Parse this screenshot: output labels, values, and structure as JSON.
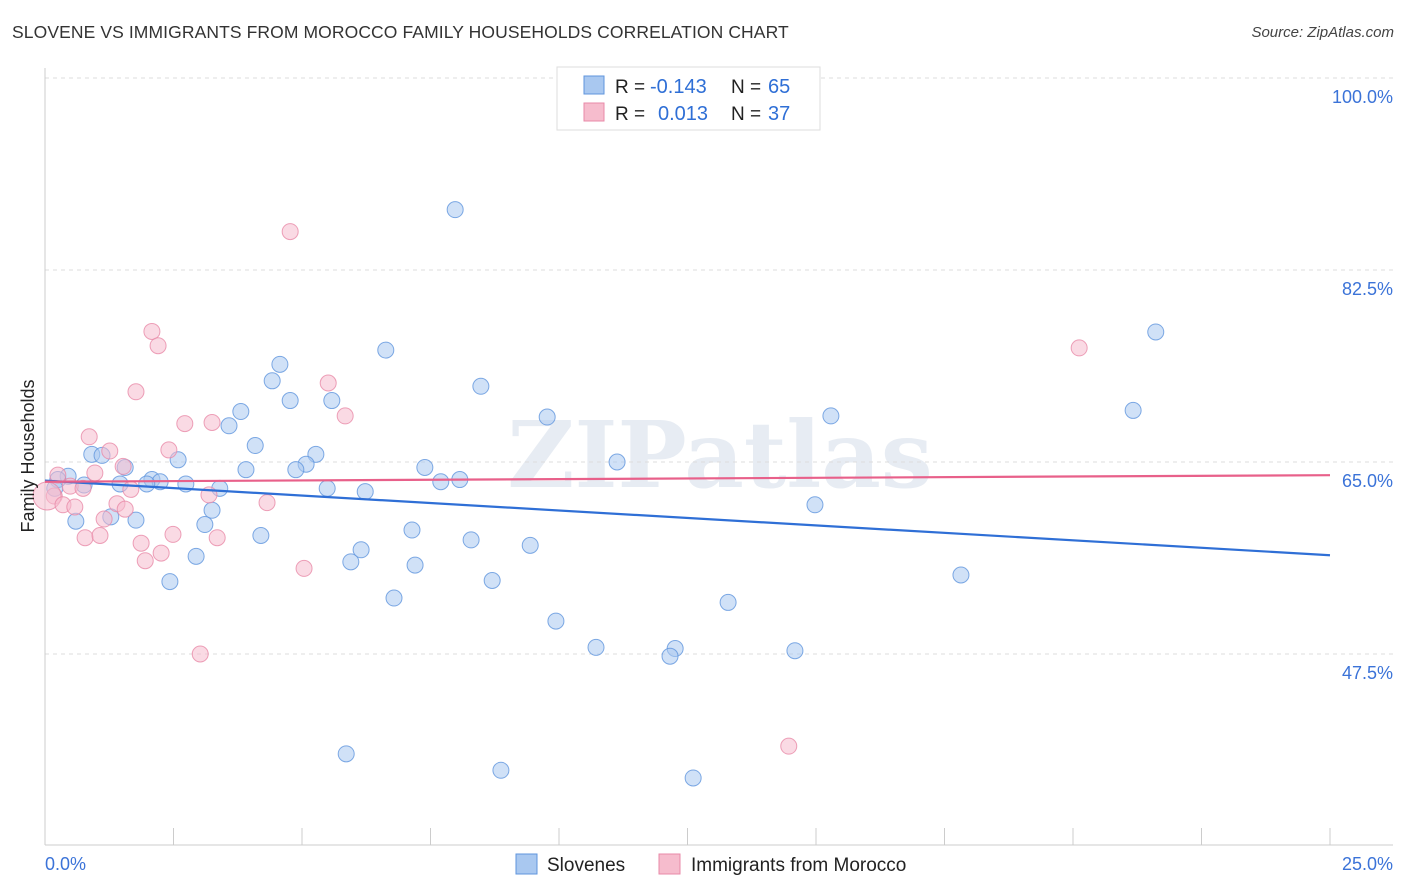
{
  "title": "SLOVENE VS IMMIGRANTS FROM MOROCCO FAMILY HOUSEHOLDS CORRELATION CHART",
  "source": "Source: ZipAtlas.com",
  "watermark": "ZIPatlas",
  "colors": {
    "blue_fill": "#a9c8f0",
    "blue_stroke": "#5f95dd",
    "blue_line": "#2f6fd6",
    "pink_fill": "#f6bccd",
    "pink_stroke": "#e88aa8",
    "pink_line": "#e8608a",
    "axis_label": "#3b73d8"
  },
  "legend": {
    "rows": [
      {
        "r_label": "R =",
        "r_value": "-0.143",
        "n_label": "N =",
        "n_value": "65"
      },
      {
        "r_label": "R =",
        "r_value": "0.013",
        "n_label": "N =",
        "n_value": "37"
      }
    ]
  },
  "chart_data": {
    "type": "scatter",
    "title": "SLOVENE VS IMMIGRANTS FROM MOROCCO FAMILY HOUSEHOLDS CORRELATION CHART",
    "xlabel": "",
    "ylabel": "Family Households",
    "xlim": [
      0,
      25
    ],
    "ylim": [
      30.1,
      100
    ],
    "x_tick_labels": [
      "0.0%",
      "25.0%"
    ],
    "y_ticks": [
      100,
      82.5,
      65,
      47.5
    ],
    "y_tick_labels": [
      "100.0%",
      "82.5%",
      "65.0%",
      "47.5%"
    ],
    "grid": true,
    "legend_position": "top-center",
    "series": [
      {
        "name": "Slovenes",
        "trend": [
          [
            0,
            63.3
          ],
          [
            25,
            56.5
          ]
        ],
        "points": [
          [
            7.98,
            88.0
          ],
          [
            21.61,
            76.85
          ],
          [
            6.63,
            75.2
          ],
          [
            4.57,
            73.9
          ],
          [
            4.42,
            72.4
          ],
          [
            8.48,
            71.9
          ],
          [
            4.77,
            70.6
          ],
          [
            5.58,
            70.6
          ],
          [
            3.81,
            69.6
          ],
          [
            3.58,
            68.3
          ],
          [
            9.77,
            69.1
          ],
          [
            15.29,
            69.2
          ],
          [
            21.17,
            69.7
          ],
          [
            4.09,
            66.5
          ],
          [
            5.27,
            65.7
          ],
          [
            0.91,
            65.7
          ],
          [
            1.11,
            65.6
          ],
          [
            2.59,
            65.2
          ],
          [
            5.08,
            64.8
          ],
          [
            1.56,
            64.5
          ],
          [
            3.91,
            64.3
          ],
          [
            4.88,
            64.3
          ],
          [
            7.39,
            64.5
          ],
          [
            11.13,
            65.0
          ],
          [
            0.45,
            63.7
          ],
          [
            0.25,
            63.4
          ],
          [
            2.08,
            63.4
          ],
          [
            2.24,
            63.2
          ],
          [
            1.46,
            63.0
          ],
          [
            1.98,
            63.0
          ],
          [
            2.74,
            63.0
          ],
          [
            0.76,
            62.9
          ],
          [
            3.4,
            62.6
          ],
          [
            7.7,
            63.2
          ],
          [
            8.07,
            63.4
          ],
          [
            5.49,
            62.6
          ],
          [
            6.23,
            62.3
          ],
          [
            0.19,
            62.6
          ],
          [
            14.98,
            61.1
          ],
          [
            3.25,
            60.6
          ],
          [
            1.28,
            60.0
          ],
          [
            1.77,
            59.7
          ],
          [
            0.6,
            59.6
          ],
          [
            3.11,
            59.3
          ],
          [
            7.14,
            58.8
          ],
          [
            4.2,
            58.3
          ],
          [
            8.29,
            57.9
          ],
          [
            9.44,
            57.4
          ],
          [
            6.15,
            57.0
          ],
          [
            5.95,
            55.9
          ],
          [
            7.2,
            55.6
          ],
          [
            2.94,
            56.4
          ],
          [
            17.82,
            54.7
          ],
          [
            2.43,
            54.1
          ],
          [
            8.7,
            54.2
          ],
          [
            6.79,
            52.6
          ],
          [
            13.29,
            52.2
          ],
          [
            9.94,
            50.5
          ],
          [
            10.72,
            48.1
          ],
          [
            12.26,
            48.0
          ],
          [
            12.16,
            47.3
          ],
          [
            14.59,
            47.8
          ],
          [
            5.86,
            38.4
          ],
          [
            8.87,
            36.9
          ],
          [
            12.61,
            36.2
          ]
        ]
      },
      {
        "name": "Immigrants from Morocco",
        "trend": [
          [
            0,
            63.2
          ],
          [
            25,
            63.8
          ]
        ],
        "points": [
          [
            4.77,
            86.0
          ],
          [
            2.08,
            76.9
          ],
          [
            2.2,
            75.6
          ],
          [
            20.12,
            75.4
          ],
          [
            1.77,
            71.4
          ],
          [
            5.51,
            72.2
          ],
          [
            5.84,
            69.2
          ],
          [
            2.72,
            68.5
          ],
          [
            3.25,
            68.6
          ],
          [
            0.86,
            67.3
          ],
          [
            2.41,
            66.1
          ],
          [
            1.26,
            66.0
          ],
          [
            1.52,
            64.6
          ],
          [
            0.97,
            64.0
          ],
          [
            0.25,
            63.8
          ],
          [
            0.49,
            62.8
          ],
          [
            0.74,
            62.6
          ],
          [
            1.67,
            62.5
          ],
          [
            3.19,
            62.0
          ],
          [
            0.18,
            61.9
          ],
          [
            0.04,
            61.9
          ],
          [
            0.35,
            61.1
          ],
          [
            0.58,
            60.9
          ],
          [
            1.4,
            61.2
          ],
          [
            4.32,
            61.3
          ],
          [
            1.56,
            60.7
          ],
          [
            1.15,
            59.8
          ],
          [
            2.49,
            58.4
          ],
          [
            3.35,
            58.1
          ],
          [
            0.78,
            58.1
          ],
          [
            1.07,
            58.3
          ],
          [
            1.87,
            57.6
          ],
          [
            2.26,
            56.7
          ],
          [
            1.95,
            56.0
          ],
          [
            5.04,
            55.3
          ],
          [
            3.02,
            47.5
          ],
          [
            14.47,
            39.1
          ]
        ]
      }
    ]
  }
}
